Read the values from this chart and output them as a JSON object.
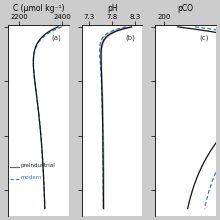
{
  "panels": [
    {
      "label": "(a)",
      "xlabel": "C (μmol kg⁻¹)",
      "xlim": [
        2150,
        2430
      ],
      "xticks": [
        2200,
        2400
      ],
      "xticklabels": [
        "2200",
        "2400"
      ]
    },
    {
      "label": "(b)",
      "xlabel": "pH",
      "xlim": [
        7.15,
        8.45
      ],
      "xticks": [
        7.3,
        7.8,
        8.3
      ],
      "xticklabels": [
        "7.3",
        "7.8",
        "8.3"
      ]
    },
    {
      "label": "(c)",
      "xlabel": "pCO",
      "xlim": [
        150,
        500
      ],
      "xticks": [
        200
      ],
      "xticklabels": [
        "200"
      ]
    }
  ],
  "ylim": [
    5200,
    -50
  ],
  "ytick_depths": [
    0,
    1500,
    3000,
    4500
  ],
  "line_black": "#111111",
  "line_blue": "#3377cc",
  "shade_color": "#bbbbbb",
  "fig_bg": "#cccccc",
  "axes_bg": "#ffffff"
}
